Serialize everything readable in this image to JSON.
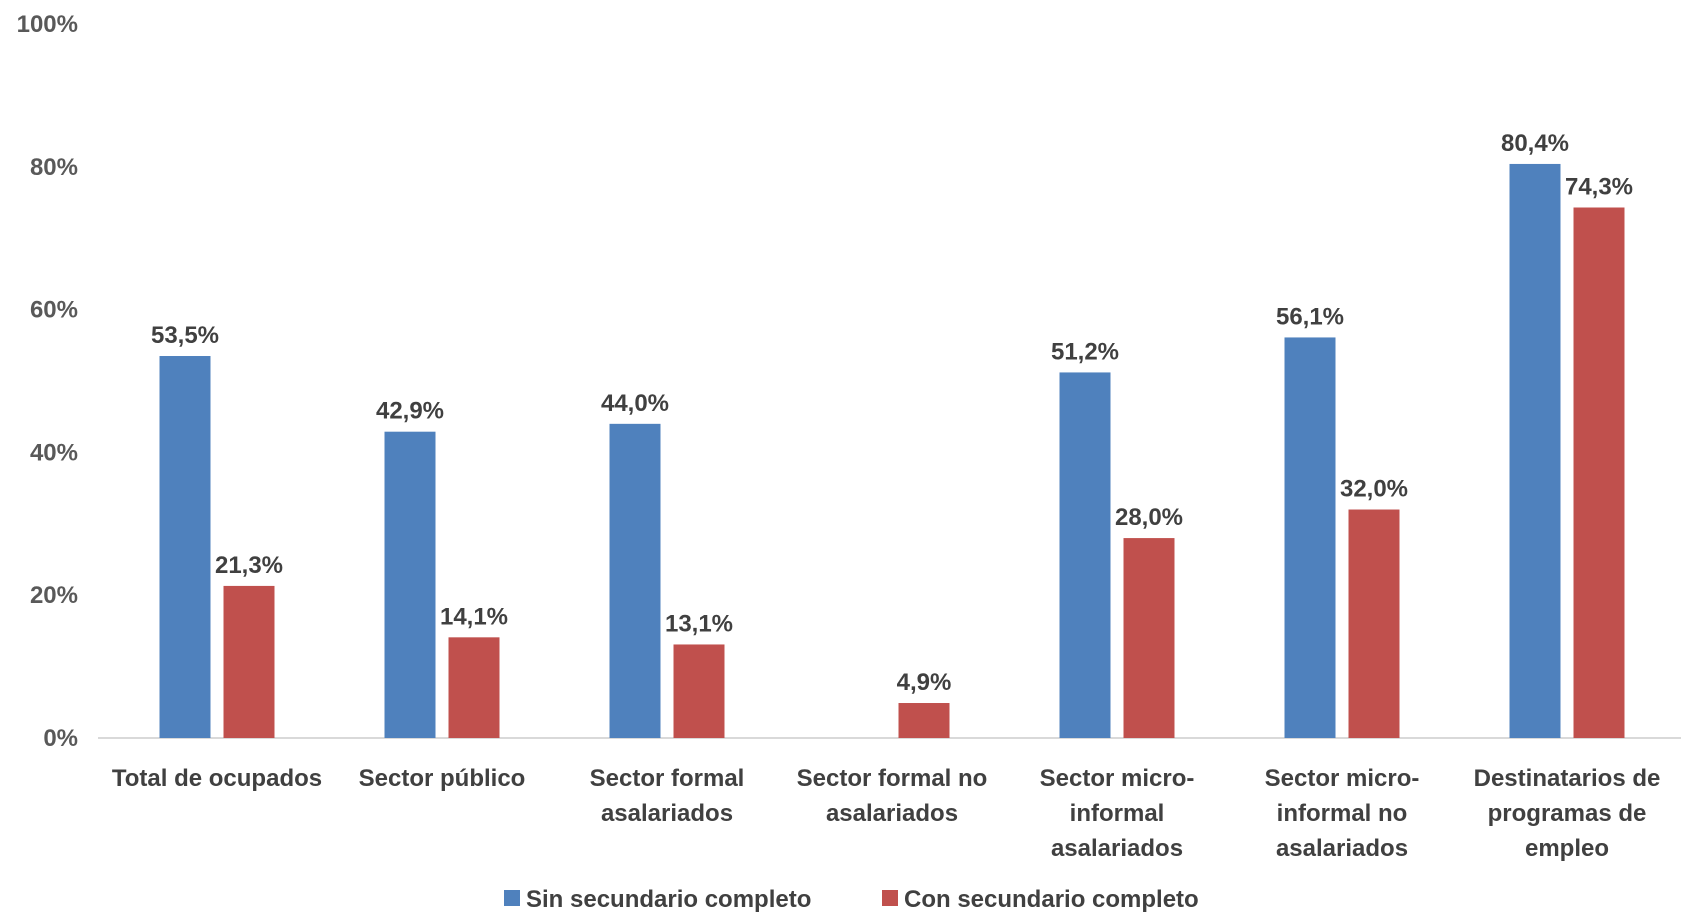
{
  "chart_data": {
    "type": "bar",
    "title": "",
    "xlabel": "",
    "ylabel": "",
    "ylim": [
      0,
      100
    ],
    "yticks": [
      0,
      20,
      40,
      60,
      80,
      100
    ],
    "ytick_labels": [
      "0%",
      "20%",
      "40%",
      "60%",
      "80%",
      "100%"
    ],
    "grid": false,
    "legend_position": "bottom",
    "categories": [
      [
        "Total de ocupados"
      ],
      [
        "Sector público"
      ],
      [
        "Sector formal",
        "asalariados"
      ],
      [
        "Sector formal no",
        "asalariados"
      ],
      [
        "Sector micro-",
        "informal",
        "asalariados"
      ],
      [
        "Sector micro-",
        "informal no",
        "asalariados"
      ],
      [
        "Destinatarios de",
        "programas de",
        "empleo"
      ]
    ],
    "series": [
      {
        "name": "Sin secundario completo",
        "color": "#4F81BD",
        "values": [
          53.5,
          42.9,
          44.0,
          null,
          51.2,
          56.1,
          80.4
        ],
        "labels": [
          "53,5%",
          "42,9%",
          "44,0%",
          null,
          "51,2%",
          "56,1%",
          "80,4%"
        ]
      },
      {
        "name": "Con secundario completo",
        "color": "#C0504D",
        "values": [
          21.3,
          14.1,
          13.1,
          4.9,
          28.0,
          32.0,
          74.3
        ],
        "labels": [
          "21,3%",
          "14,1%",
          "13,1%",
          "4,9%",
          "28,0%",
          "32,0%",
          "74,3%"
        ]
      }
    ]
  }
}
